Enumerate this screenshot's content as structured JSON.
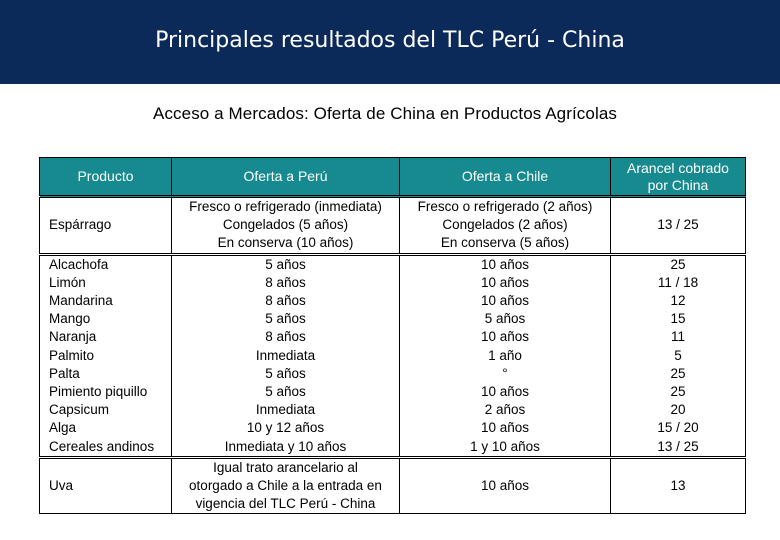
{
  "header": {
    "title": "Principales resultados del TLC Perú - China",
    "background": "#0b2a5a"
  },
  "subtitle": "Acceso a Mercados: Oferta de China en Productos Agrícolas",
  "table": {
    "header_color": "#168a8e",
    "columns": [
      "Producto",
      "Oferta a Perú",
      "Oferta a Chile",
      "Arancel cobrado por China"
    ],
    "asparagus": {
      "producto": "Espárrago",
      "peru": [
        "Fresco o refrigerado (inmediata)",
        "Congelados (5 años)",
        "En conserva (10 años)"
      ],
      "chile": [
        "Fresco o refrigerado (2 años)",
        "Congelados (2 años)",
        "En conserva (5 años)"
      ],
      "arancel": "13 / 25"
    },
    "rows": [
      {
        "producto": "Alcachofa",
        "peru": "5 años",
        "chile": "10 años",
        "arancel": "25"
      },
      {
        "producto": "Limón",
        "peru": "8 años",
        "chile": "10 años",
        "arancel": "11 / 18"
      },
      {
        "producto": "Mandarina",
        "peru": "8 años",
        "chile": "10 años",
        "arancel": "12"
      },
      {
        "producto": "Mango",
        "peru": "5 años",
        "chile": "5 años",
        "arancel": "15"
      },
      {
        "producto": "Naranja",
        "peru": "8 años",
        "chile": "10 años",
        "arancel": "11"
      },
      {
        "producto": "Palmito",
        "peru": "Inmediata",
        "chile": "1 año",
        "arancel": "5"
      },
      {
        "producto": "Palta",
        "peru": "5 años",
        "chile": "°",
        "arancel": "25"
      },
      {
        "producto": "Pimiento piquillo",
        "peru": "5 años",
        "chile": "10 años",
        "arancel": "25"
      },
      {
        "producto": "Capsicum",
        "peru": "Inmediata",
        "chile": "2 años",
        "arancel": "20"
      },
      {
        "producto": "Alga",
        "peru": "10 y 12 años",
        "chile": "10 años",
        "arancel": "15 / 20"
      },
      {
        "producto": "Cereales andinos",
        "peru": "Inmediata y 10 años",
        "chile": "1 y 10 años",
        "arancel": "13 / 25"
      }
    ],
    "uva": {
      "producto": "Uva",
      "peru": [
        "Igual trato arancelario al",
        "otorgado a Chile a la entrada en",
        "vigencia del TLC Perú - China"
      ],
      "chile": "10 años",
      "arancel": "13"
    }
  }
}
